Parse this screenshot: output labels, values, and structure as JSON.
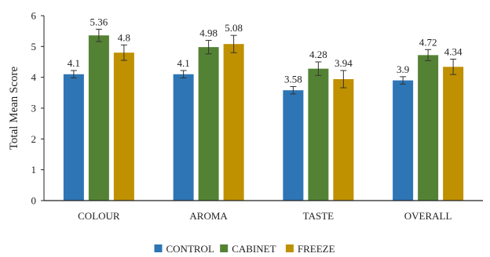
{
  "chart_data": {
    "type": "bar",
    "title": "",
    "xlabel": "",
    "ylabel": "Total Mean Score",
    "ylim": [
      0,
      6
    ],
    "yticks": [
      "0",
      "1",
      "2",
      "3",
      "4",
      "5",
      "6"
    ],
    "categories": [
      "COLOUR",
      "AROMA",
      "TASTE",
      "OVERALL"
    ],
    "series": [
      {
        "name": "CONTROL",
        "color": "#2e75b6",
        "values": [
          4.1,
          4.1,
          3.58,
          3.9
        ],
        "labels": [
          "4.1",
          "4.1",
          "3.58",
          "3.9"
        ],
        "errors": [
          0.12,
          0.12,
          0.12,
          0.12
        ]
      },
      {
        "name": "CABINET",
        "color": "#548235",
        "values": [
          5.36,
          4.98,
          4.28,
          4.72
        ],
        "labels": [
          "5.36",
          "4.98",
          "4.28",
          "4.72"
        ],
        "errors": [
          0.2,
          0.22,
          0.22,
          0.18
        ]
      },
      {
        "name": "FREEZE",
        "color": "#bf9000",
        "values": [
          4.8,
          5.08,
          3.94,
          4.34
        ],
        "labels": [
          "4.8",
          "5.08",
          "3.94",
          "4.34"
        ],
        "errors": [
          0.25,
          0.28,
          0.28,
          0.25
        ]
      }
    ],
    "grid": false,
    "error_bars": true,
    "legend_position": "bottom"
  }
}
